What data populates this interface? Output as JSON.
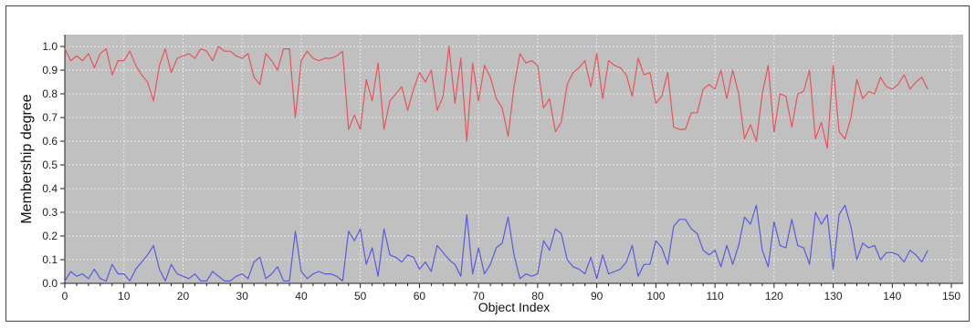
{
  "chart_data": {
    "type": "line",
    "title": "",
    "xlabel": "Object Index",
    "ylabel": "Membership degree",
    "xlim": [
      0,
      152
    ],
    "ylim": [
      0,
      1.05
    ],
    "xticks": [
      "0",
      "10",
      "20",
      "30",
      "40",
      "50",
      "60",
      "70",
      "80",
      "90",
      "100",
      "110",
      "120",
      "130",
      "140",
      "150"
    ],
    "yticks": [
      "0.0",
      "0.1",
      "0.2",
      "0.3",
      "0.4",
      "0.5",
      "0.6",
      "0.7",
      "0.8",
      "0.9",
      "1.0"
    ],
    "grid": true,
    "legend": "none",
    "colors": {
      "plot_bg": "#c0c0c0",
      "grid": "#e8e8e8",
      "series1": "#e8545a",
      "series2": "#5a5ae0"
    },
    "x": [
      0,
      1,
      2,
      3,
      4,
      5,
      6,
      7,
      8,
      9,
      10,
      11,
      12,
      13,
      14,
      15,
      16,
      17,
      18,
      19,
      20,
      21,
      22,
      23,
      24,
      25,
      26,
      27,
      28,
      29,
      30,
      31,
      32,
      33,
      34,
      35,
      36,
      37,
      38,
      39,
      40,
      41,
      42,
      43,
      44,
      45,
      46,
      47,
      48,
      49,
      50,
      51,
      52,
      53,
      54,
      55,
      56,
      57,
      58,
      59,
      60,
      61,
      62,
      63,
      64,
      65,
      66,
      67,
      68,
      69,
      70,
      71,
      72,
      73,
      74,
      75,
      76,
      77,
      78,
      79,
      80,
      81,
      82,
      83,
      84,
      85,
      86,
      87,
      88,
      89,
      90,
      91,
      92,
      93,
      94,
      95,
      96,
      97,
      98,
      99,
      100,
      101,
      102,
      103,
      104,
      105,
      106,
      107,
      108,
      109,
      110,
      111,
      112,
      113,
      114,
      115,
      116,
      117,
      118,
      119,
      120,
      121,
      122,
      123,
      124,
      125,
      126,
      127,
      128,
      129,
      130,
      131,
      132,
      133,
      134,
      135,
      136,
      137,
      138,
      139,
      140,
      141,
      142,
      143,
      144,
      145,
      146
    ],
    "series": [
      {
        "values": [
          0.99,
          0.94,
          0.96,
          0.94,
          0.97,
          0.91,
          0.97,
          0.99,
          0.88,
          0.94,
          0.94,
          0.98,
          0.92,
          0.88,
          0.85,
          0.77,
          0.92,
          0.99,
          0.89,
          0.95,
          0.96,
          0.97,
          0.95,
          0.99,
          0.98,
          0.94,
          1.0,
          0.98,
          0.98,
          0.96,
          0.95,
          0.97,
          0.87,
          0.84,
          0.97,
          0.94,
          0.9,
          0.99,
          0.99,
          0.7,
          0.94,
          0.98,
          0.95,
          0.94,
          0.95,
          0.95,
          0.96,
          0.98,
          0.65,
          0.71,
          0.65,
          0.86,
          0.77,
          0.93,
          0.65,
          0.77,
          0.8,
          0.83,
          0.73,
          0.82,
          0.89,
          0.85,
          0.9,
          0.73,
          0.79,
          1.0,
          0.76,
          0.95,
          0.6,
          0.93,
          0.77,
          0.92,
          0.87,
          0.78,
          0.74,
          0.62,
          0.83,
          0.97,
          0.93,
          0.94,
          0.92,
          0.74,
          0.78,
          0.64,
          0.68,
          0.84,
          0.89,
          0.91,
          0.94,
          0.83,
          0.97,
          0.78,
          0.94,
          0.92,
          0.91,
          0.88,
          0.79,
          0.95,
          0.88,
          0.89,
          0.76,
          0.79,
          0.89,
          0.66,
          0.65,
          0.65,
          0.72,
          0.72,
          0.82,
          0.84,
          0.82,
          0.9,
          0.78,
          0.9,
          0.8,
          0.61,
          0.67,
          0.6,
          0.8,
          0.92,
          0.64,
          0.8,
          0.79,
          0.66,
          0.8,
          0.81,
          0.9,
          0.61,
          0.68,
          0.57,
          0.92,
          0.64,
          0.61,
          0.7,
          0.86,
          0.78,
          0.81,
          0.8,
          0.87,
          0.83,
          0.82,
          0.84,
          0.88,
          0.82,
          0.85,
          0.87,
          0.82
        ]
      },
      {
        "values": [
          0.01,
          0.05,
          0.03,
          0.04,
          0.02,
          0.06,
          0.02,
          0.01,
          0.08,
          0.04,
          0.04,
          0.01,
          0.06,
          0.09,
          0.12,
          0.16,
          0.06,
          0.01,
          0.08,
          0.04,
          0.03,
          0.02,
          0.04,
          0.01,
          0.01,
          0.05,
          0.03,
          0.01,
          0.01,
          0.03,
          0.04,
          0.02,
          0.09,
          0.11,
          0.02,
          0.04,
          0.07,
          0.01,
          0.01,
          0.22,
          0.05,
          0.02,
          0.04,
          0.05,
          0.04,
          0.04,
          0.03,
          0.01,
          0.22,
          0.18,
          0.23,
          0.08,
          0.15,
          0.03,
          0.23,
          0.12,
          0.11,
          0.09,
          0.12,
          0.11,
          0.06,
          0.09,
          0.05,
          0.16,
          0.13,
          0.1,
          0.08,
          0.03,
          0.29,
          0.04,
          0.15,
          0.04,
          0.08,
          0.15,
          0.17,
          0.28,
          0.12,
          0.02,
          0.04,
          0.03,
          0.04,
          0.18,
          0.14,
          0.23,
          0.21,
          0.1,
          0.07,
          0.06,
          0.04,
          0.11,
          0.02,
          0.12,
          0.04,
          0.05,
          0.06,
          0.09,
          0.16,
          0.03,
          0.08,
          0.08,
          0.18,
          0.15,
          0.08,
          0.24,
          0.27,
          0.27,
          0.23,
          0.21,
          0.14,
          0.12,
          0.14,
          0.07,
          0.16,
          0.08,
          0.16,
          0.28,
          0.25,
          0.33,
          0.14,
          0.07,
          0.26,
          0.16,
          0.15,
          0.27,
          0.16,
          0.15,
          0.08,
          0.3,
          0.25,
          0.29,
          0.06,
          0.29,
          0.33,
          0.24,
          0.1,
          0.17,
          0.15,
          0.16,
          0.1,
          0.13,
          0.13,
          0.12,
          0.09,
          0.14,
          0.12,
          0.09,
          0.14
        ]
      }
    ]
  }
}
